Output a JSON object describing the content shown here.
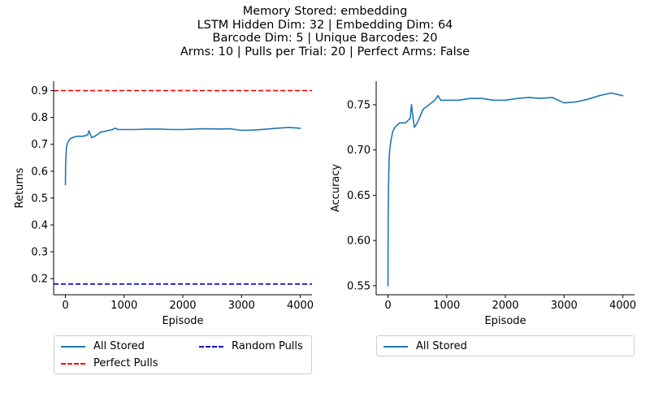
{
  "title_lines": [
    "Memory Stored: embedding",
    "LSTM Hidden Dim: 32 | Embedding Dim: 64",
    "Barcode Dim: 5 | Unique Barcodes: 20",
    "Arms: 10 | Pulls per Trial: 20 | Perfect Arms: False"
  ],
  "colors": {
    "series": "#1f77b4",
    "perfect": "#ff0000",
    "random": "#0000cd"
  },
  "chart_data": [
    {
      "type": "line",
      "xlabel": "Episode",
      "ylabel": "Returns",
      "xlim": [
        -200,
        4200
      ],
      "ylim": [
        0.14,
        0.935
      ],
      "xticks": [
        0,
        1000,
        2000,
        3000,
        4000
      ],
      "yticks": [
        0.2,
        0.3,
        0.4,
        0.5,
        0.6,
        0.7,
        0.8,
        0.9
      ],
      "series": [
        {
          "name": "All Stored",
          "style": "solid",
          "color": "#1f77b4",
          "x": [
            0,
            5,
            10,
            20,
            30,
            50,
            80,
            120,
            200,
            300,
            380,
            400,
            420,
            450,
            500,
            600,
            700,
            800,
            850,
            900,
            1000,
            1200,
            1400,
            1600,
            1800,
            2000,
            2200,
            2400,
            2600,
            2800,
            3000,
            3200,
            3400,
            3600,
            3800,
            4000
          ],
          "y": [
            0.55,
            0.63,
            0.66,
            0.69,
            0.7,
            0.71,
            0.72,
            0.725,
            0.73,
            0.73,
            0.735,
            0.75,
            0.74,
            0.725,
            0.73,
            0.745,
            0.75,
            0.755,
            0.76,
            0.755,
            0.755,
            0.755,
            0.757,
            0.757,
            0.755,
            0.755,
            0.757,
            0.758,
            0.757,
            0.758,
            0.752,
            0.753,
            0.756,
            0.76,
            0.763,
            0.76
          ]
        },
        {
          "name": "Perfect Pulls",
          "style": "dashed",
          "color": "#ff0000",
          "hline": 0.9
        },
        {
          "name": "Random Pulls",
          "style": "dashed",
          "color": "#0000cd",
          "hline": 0.18
        }
      ],
      "legend": {
        "placement": "bottom",
        "entries": [
          "All Stored",
          "Random Pulls",
          "Perfect Pulls"
        ]
      }
    },
    {
      "type": "line",
      "xlabel": "Episode",
      "ylabel": "Accuracy",
      "xlim": [
        -200,
        4200
      ],
      "ylim": [
        0.54,
        0.776
      ],
      "xticks": [
        0,
        1000,
        2000,
        3000,
        4000
      ],
      "yticks": [
        0.55,
        0.6,
        0.65,
        0.7,
        0.75
      ],
      "series": [
        {
          "name": "All Stored",
          "style": "solid",
          "color": "#1f77b4",
          "x": [
            0,
            5,
            10,
            20,
            30,
            50,
            80,
            120,
            200,
            300,
            380,
            400,
            420,
            450,
            500,
            600,
            700,
            800,
            850,
            900,
            1000,
            1200,
            1400,
            1600,
            1800,
            2000,
            2200,
            2400,
            2600,
            2800,
            3000,
            3200,
            3400,
            3600,
            3800,
            4000
          ],
          "y": [
            0.55,
            0.63,
            0.66,
            0.69,
            0.7,
            0.71,
            0.72,
            0.725,
            0.73,
            0.73,
            0.735,
            0.75,
            0.74,
            0.725,
            0.73,
            0.745,
            0.75,
            0.755,
            0.76,
            0.755,
            0.755,
            0.755,
            0.757,
            0.757,
            0.755,
            0.755,
            0.757,
            0.758,
            0.757,
            0.758,
            0.752,
            0.753,
            0.756,
            0.76,
            0.763,
            0.76
          ]
        }
      ],
      "legend": {
        "placement": "bottom",
        "entries": [
          "All Stored"
        ]
      }
    }
  ]
}
